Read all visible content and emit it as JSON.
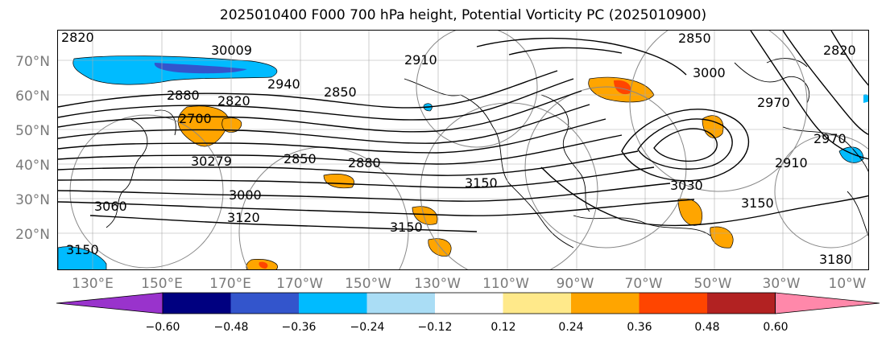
{
  "title": "2025010400 F000 700 hPa height, Potential Vorticity PC (2025010900)",
  "map": {
    "lat_labels": [
      "70°N",
      "60°N",
      "50°N",
      "40°N",
      "30°N",
      "20°N"
    ],
    "lon_labels": [
      "130°E",
      "150°E",
      "170°E",
      "170°W",
      "150°W",
      "130°W",
      "110°W",
      "90°W",
      "70°W",
      "50°W",
      "30°W",
      "10°W"
    ],
    "contour_labels": [
      "2820",
      "2880",
      "2820",
      "2940",
      "2850",
      "30009",
      "2910",
      "2850",
      "3000",
      "2970",
      "2820",
      "2700",
      "30279",
      "2850",
      "2880",
      "3060",
      "3000",
      "3120",
      "3150",
      "3150",
      "3150",
      "2970",
      "2910",
      "3030",
      "3150",
      "3180"
    ]
  },
  "colorbar": {
    "ticks": [
      "−0.60",
      "−0.48",
      "−0.36",
      "−0.24",
      "−0.12",
      "0.12",
      "0.24",
      "0.36",
      "0.48",
      "0.60"
    ],
    "colors": [
      "#9933cc",
      "#000080",
      "#3355cc",
      "#00bbff",
      "#aaddf5",
      "#ffffff",
      "#ffe98a",
      "#ffa500",
      "#ff4500",
      "#b22222",
      "#ff88aa"
    ]
  }
}
